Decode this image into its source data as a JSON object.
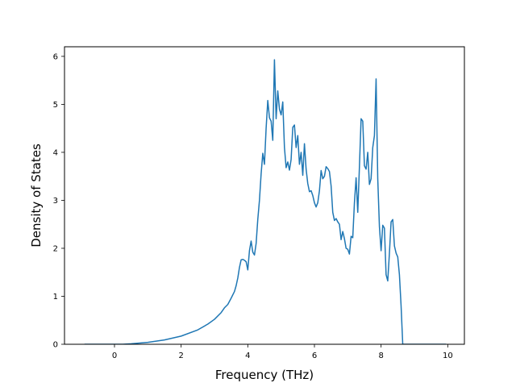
{
  "chart_data": {
    "type": "line",
    "title": "",
    "xlabel": "Frequency (THz)",
    "ylabel": "Density of States",
    "xlim": [
      -1.5,
      10.5
    ],
    "ylim": [
      0,
      6.2
    ],
    "xticks": [
      0,
      2,
      4,
      6,
      8,
      10
    ],
    "yticks": [
      0,
      1,
      2,
      3,
      4,
      5,
      6
    ],
    "grid": false,
    "legend": "none",
    "series": [
      {
        "color": "#1f77b4",
        "points": [
          [
            -0.9,
            0.0
          ],
          [
            0.0,
            0.0
          ],
          [
            0.25,
            0.0
          ],
          [
            0.5,
            0.01
          ],
          [
            1.0,
            0.04
          ],
          [
            1.5,
            0.09
          ],
          [
            2.0,
            0.17
          ],
          [
            2.5,
            0.3
          ],
          [
            2.8,
            0.42
          ],
          [
            3.0,
            0.52
          ],
          [
            3.2,
            0.66
          ],
          [
            3.3,
            0.76
          ],
          [
            3.4,
            0.83
          ],
          [
            3.5,
            0.96
          ],
          [
            3.6,
            1.1
          ],
          [
            3.65,
            1.22
          ],
          [
            3.7,
            1.38
          ],
          [
            3.75,
            1.6
          ],
          [
            3.8,
            1.76
          ],
          [
            3.85,
            1.77
          ],
          [
            3.9,
            1.75
          ],
          [
            3.95,
            1.72
          ],
          [
            4.0,
            1.55
          ],
          [
            4.05,
            1.95
          ],
          [
            4.1,
            2.15
          ],
          [
            4.15,
            1.92
          ],
          [
            4.2,
            1.86
          ],
          [
            4.25,
            2.1
          ],
          [
            4.3,
            2.6
          ],
          [
            4.35,
            3.0
          ],
          [
            4.4,
            3.55
          ],
          [
            4.45,
            3.98
          ],
          [
            4.5,
            3.75
          ],
          [
            4.55,
            4.5
          ],
          [
            4.6,
            5.08
          ],
          [
            4.65,
            4.72
          ],
          [
            4.7,
            4.65
          ],
          [
            4.75,
            4.25
          ],
          [
            4.8,
            5.93
          ],
          [
            4.85,
            4.7
          ],
          [
            4.9,
            5.28
          ],
          [
            4.95,
            4.9
          ],
          [
            5.0,
            4.78
          ],
          [
            5.05,
            5.05
          ],
          [
            5.1,
            4.1
          ],
          [
            5.15,
            3.68
          ],
          [
            5.2,
            3.8
          ],
          [
            5.25,
            3.63
          ],
          [
            5.3,
            3.85
          ],
          [
            5.35,
            4.52
          ],
          [
            5.4,
            4.57
          ],
          [
            5.45,
            4.1
          ],
          [
            5.5,
            4.35
          ],
          [
            5.55,
            3.75
          ],
          [
            5.6,
            4.0
          ],
          [
            5.65,
            3.52
          ],
          [
            5.7,
            4.18
          ],
          [
            5.75,
            3.65
          ],
          [
            5.8,
            3.35
          ],
          [
            5.85,
            3.18
          ],
          [
            5.9,
            3.2
          ],
          [
            5.95,
            3.1
          ],
          [
            6.0,
            2.95
          ],
          [
            6.05,
            2.86
          ],
          [
            6.1,
            2.95
          ],
          [
            6.15,
            3.2
          ],
          [
            6.2,
            3.62
          ],
          [
            6.25,
            3.45
          ],
          [
            6.3,
            3.5
          ],
          [
            6.35,
            3.7
          ],
          [
            6.4,
            3.66
          ],
          [
            6.45,
            3.6
          ],
          [
            6.5,
            3.3
          ],
          [
            6.55,
            2.75
          ],
          [
            6.6,
            2.58
          ],
          [
            6.65,
            2.62
          ],
          [
            6.7,
            2.55
          ],
          [
            6.75,
            2.5
          ],
          [
            6.8,
            2.18
          ],
          [
            6.85,
            2.35
          ],
          [
            6.9,
            2.2
          ],
          [
            6.95,
            2.0
          ],
          [
            7.0,
            1.98
          ],
          [
            7.05,
            1.88
          ],
          [
            7.1,
            2.25
          ],
          [
            7.15,
            2.22
          ],
          [
            7.2,
            2.95
          ],
          [
            7.25,
            3.47
          ],
          [
            7.3,
            2.75
          ],
          [
            7.35,
            3.7
          ],
          [
            7.4,
            4.7
          ],
          [
            7.45,
            4.65
          ],
          [
            7.5,
            3.72
          ],
          [
            7.55,
            3.65
          ],
          [
            7.6,
            4.0
          ],
          [
            7.65,
            3.33
          ],
          [
            7.7,
            3.45
          ],
          [
            7.75,
            4.1
          ],
          [
            7.8,
            4.35
          ],
          [
            7.85,
            5.53
          ],
          [
            7.9,
            3.45
          ],
          [
            7.95,
            2.45
          ],
          [
            8.0,
            1.95
          ],
          [
            8.05,
            2.48
          ],
          [
            8.1,
            2.42
          ],
          [
            8.15,
            1.45
          ],
          [
            8.2,
            1.32
          ],
          [
            8.25,
            1.9
          ],
          [
            8.3,
            2.55
          ],
          [
            8.35,
            2.6
          ],
          [
            8.4,
            2.05
          ],
          [
            8.45,
            1.9
          ],
          [
            8.5,
            1.82
          ],
          [
            8.55,
            1.45
          ],
          [
            8.6,
            0.8
          ],
          [
            8.65,
            0.0
          ],
          [
            9.0,
            0.0
          ],
          [
            9.5,
            0.0
          ],
          [
            9.95,
            0.0
          ]
        ]
      }
    ]
  }
}
